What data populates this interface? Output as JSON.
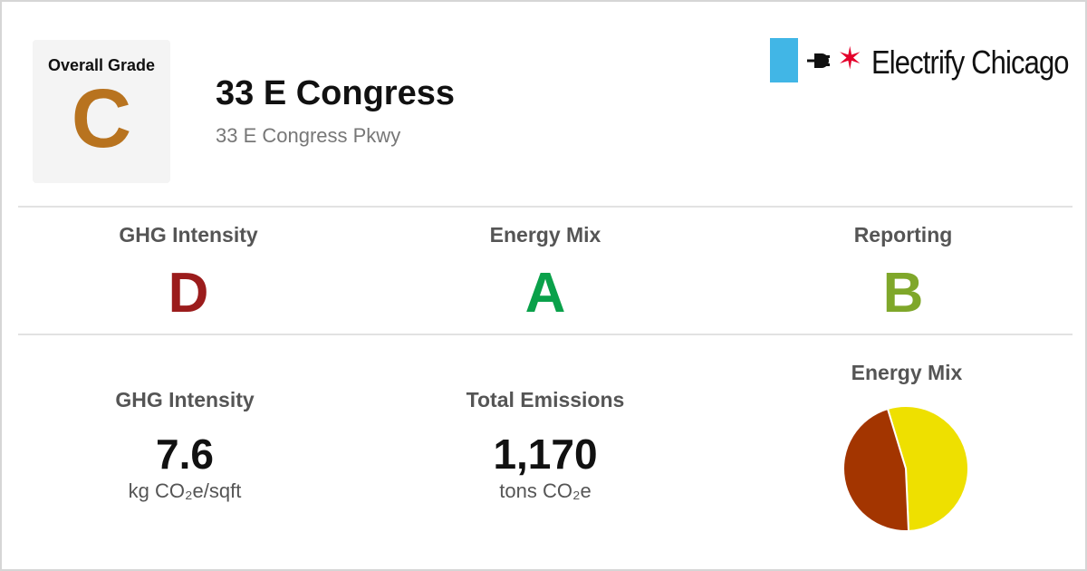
{
  "header": {
    "overall_label": "Overall Grade",
    "overall_grade": "C",
    "overall_color": "#b8731f",
    "title": "33 E Congress",
    "address": "33 E Congress Pkwy"
  },
  "logo": {
    "text": "Electrify Chicago",
    "flag_color": "#41b6e6",
    "star_color": "#e4002b",
    "icon": "plug-icon"
  },
  "grades": [
    {
      "label": "GHG Intensity",
      "grade": "D",
      "color": "#9b1c1c"
    },
    {
      "label": "Energy Mix",
      "grade": "A",
      "color": "#0aa14a"
    },
    {
      "label": "Reporting",
      "grade": "B",
      "color": "#7fa72a"
    }
  ],
  "stats": [
    {
      "label": "GHG Intensity",
      "value": "7.6",
      "unit": "kg CO₂e/sqft"
    },
    {
      "label": "Total Emissions",
      "value": "1,170",
      "unit": "tons CO₂e"
    }
  ],
  "energy_mix": {
    "label": "Energy Mix",
    "chart_data": {
      "type": "pie",
      "slices": [
        {
          "share": 0.54,
          "color": "#eee000"
        },
        {
          "share": 0.46,
          "color": "#a33500"
        }
      ]
    }
  }
}
